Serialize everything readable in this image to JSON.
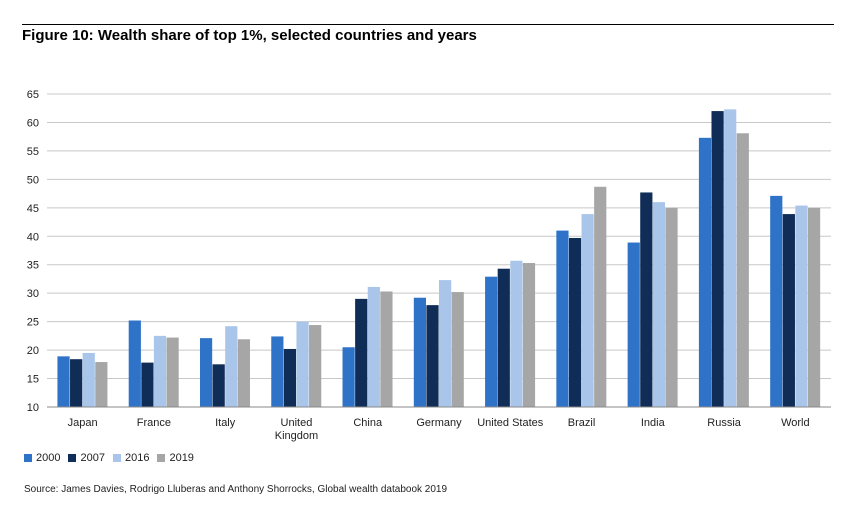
{
  "figure": {
    "title": "Figure 10: Wealth share of top 1%, selected countries and years",
    "source": "Source: James Davies, Rodrigo Lluberas and Anthony Shorrocks, Global wealth databook 2019"
  },
  "chart_data": {
    "type": "bar",
    "title": "Figure 10: Wealth share of top 1%, selected countries and years",
    "xlabel": "",
    "ylabel": "",
    "ylim": [
      10,
      65
    ],
    "yticks": [
      10,
      15,
      20,
      25,
      30,
      35,
      40,
      45,
      50,
      55,
      60,
      65
    ],
    "grid": true,
    "legend_position": "bottom-left",
    "categories": [
      "Japan",
      "France",
      "Italy",
      "United Kingdom",
      "China",
      "Germany",
      "United States",
      "Brazil",
      "India",
      "Russia",
      "World"
    ],
    "category_lines": [
      [
        "Japan"
      ],
      [
        "France"
      ],
      [
        "Italy"
      ],
      [
        "United",
        "Kingdom"
      ],
      [
        "China"
      ],
      [
        "Germany"
      ],
      [
        "United States"
      ],
      [
        "Brazil"
      ],
      [
        "India"
      ],
      [
        "Russia"
      ],
      [
        "World"
      ]
    ],
    "series": [
      {
        "name": "2000",
        "color": "#2f73c8",
        "values": [
          18.9,
          25.2,
          22.1,
          22.4,
          20.5,
          29.2,
          32.9,
          41.0,
          38.9,
          57.3,
          47.1
        ]
      },
      {
        "name": "2007",
        "color": "#0f2d57",
        "values": [
          18.4,
          17.8,
          17.5,
          20.2,
          29.0,
          27.9,
          34.3,
          39.7,
          47.7,
          62.0,
          43.9
        ]
      },
      {
        "name": "2016",
        "color": "#a9c6ea",
        "values": [
          19.5,
          22.5,
          24.2,
          25.0,
          31.1,
          32.3,
          35.7,
          43.9,
          46.0,
          62.3,
          45.4
        ]
      },
      {
        "name": "2019",
        "color": "#a6a6a6",
        "values": [
          17.9,
          22.2,
          21.9,
          24.4,
          30.3,
          30.2,
          35.3,
          48.7,
          45.0,
          58.1,
          45.0
        ]
      }
    ]
  }
}
